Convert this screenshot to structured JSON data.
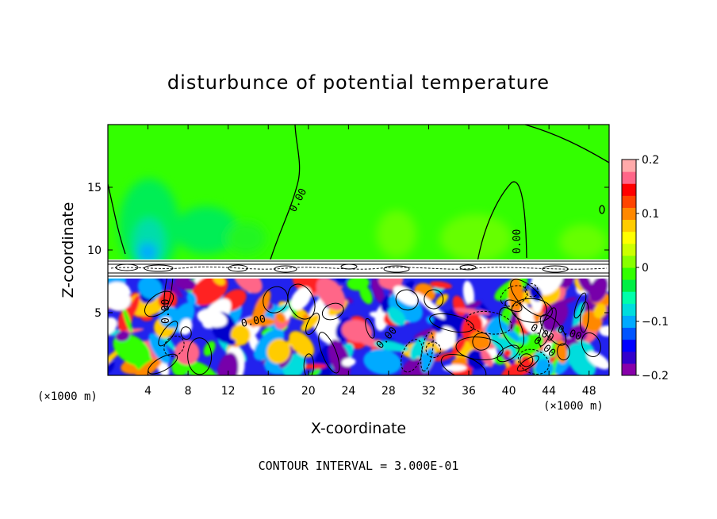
{
  "chart_data": {
    "type": "heatmap",
    "title": "disturbunce of potential temperature",
    "xlabel": "X-coordinate",
    "ylabel": "Z-coordinate",
    "x_unit": "(×1000 m)",
    "z_unit": "(×1000 m)",
    "x_ticks": [
      4,
      8,
      12,
      16,
      20,
      24,
      28,
      32,
      36,
      40,
      44,
      48
    ],
    "z_ticks": [
      5,
      10,
      15
    ],
    "xlim": [
      0,
      50
    ],
    "zlim": [
      0,
      20
    ],
    "colorbar": {
      "range": [
        -0.2,
        0.2
      ],
      "tick_values": [
        0.2,
        0.1,
        0,
        -0.1,
        -0.2
      ],
      "tick_labels": [
        "0.2",
        "0.1",
        "0",
        "−0.1",
        "−0.2"
      ],
      "colors": [
        "#8800aa",
        "#3300cc",
        "#0000ff",
        "#0055ff",
        "#00aaff",
        "#00dddd",
        "#00ffaa",
        "#00ee44",
        "#33ff00",
        "#88ff00",
        "#ccff00",
        "#ffff00",
        "#ffcc00",
        "#ff8800",
        "#ff4400",
        "#ff0000",
        "#ff6688",
        "#ffaaaa"
      ]
    },
    "contour_labels": [
      "0.00",
      "0.00",
      "0.00",
      "0.00",
      "0.00",
      "0.00",
      "0.00",
      "0.00"
    ],
    "footer": "CONTOUR INTERVAL = 3.000E-01"
  }
}
